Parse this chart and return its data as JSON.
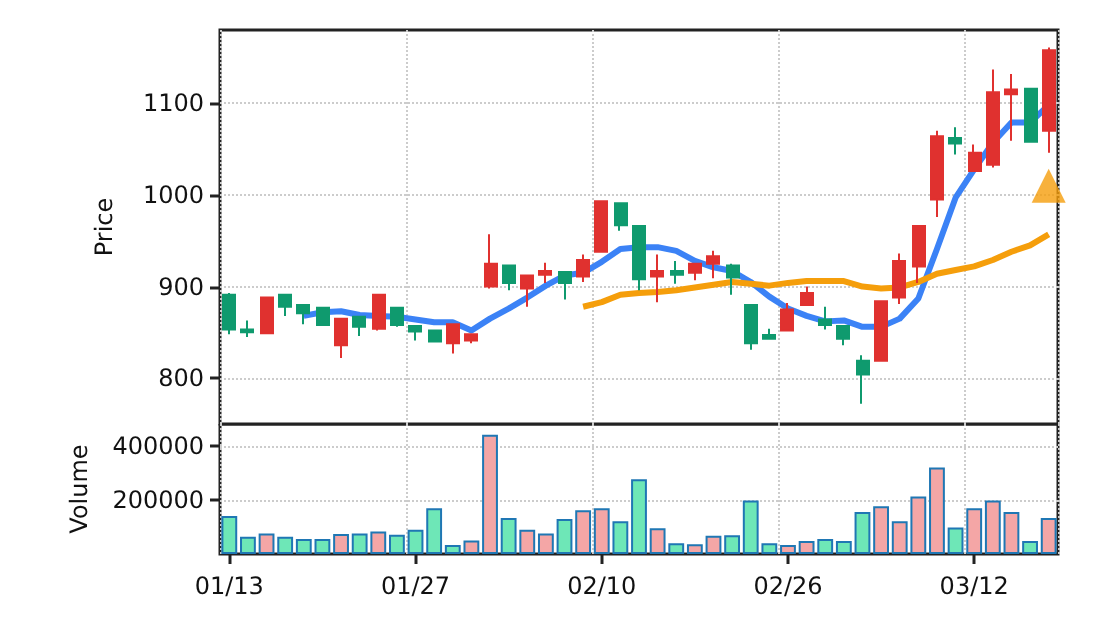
{
  "chart_data": [
    {
      "type": "candlestick",
      "ylabel": "Price",
      "tick_labels": "y",
      "grid": true,
      "categories": [
        null,
        null,
        null,
        null,
        null,
        null,
        null,
        null,
        null,
        null,
        null,
        null,
        null,
        null,
        null,
        null,
        null,
        null,
        null,
        null,
        null,
        null,
        null,
        null,
        null,
        null,
        null,
        null,
        null,
        null,
        null,
        null,
        null,
        null,
        null,
        null,
        null,
        null,
        null,
        null,
        null,
        null,
        null,
        null,
        null
      ],
      "ylim": [
        750,
        1180
      ],
      "yticks": [
        800,
        900,
        1000,
        1100
      ],
      "ohlc": [
        [
          891,
          893,
          848,
          853
        ],
        [
          853,
          863,
          845,
          850
        ],
        [
          849,
          889,
          848,
          888
        ],
        [
          891,
          891,
          868,
          878
        ],
        [
          880,
          881,
          859,
          871
        ],
        [
          877,
          878,
          857,
          858
        ],
        [
          836,
          866,
          822,
          865
        ],
        [
          867,
          868,
          846,
          856
        ],
        [
          854,
          892,
          852,
          891
        ],
        [
          877,
          878,
          856,
          858
        ],
        [
          857,
          858,
          841,
          851
        ],
        [
          852,
          853,
          839,
          840
        ],
        [
          838,
          860,
          827,
          859
        ],
        [
          841,
          849,
          838,
          848
        ],
        [
          900,
          957,
          898,
          925
        ],
        [
          923,
          924,
          896,
          904
        ],
        [
          898,
          913,
          878,
          912
        ],
        [
          913,
          926,
          904,
          917
        ],
        [
          916,
          917,
          886,
          904
        ],
        [
          911,
          935,
          905,
          929
        ],
        [
          938,
          994,
          937,
          993
        ],
        [
          991,
          992,
          961,
          967
        ],
        [
          966,
          967,
          896,
          908
        ],
        [
          911,
          935,
          883,
          917
        ],
        [
          917,
          928,
          903,
          913
        ],
        [
          915,
          926,
          907,
          925
        ],
        [
          925,
          939,
          909,
          933
        ],
        [
          923,
          925,
          891,
          910
        ],
        [
          880,
          881,
          831,
          838
        ],
        [
          847,
          854,
          842,
          843
        ],
        [
          852,
          882,
          851,
          875
        ],
        [
          880,
          900,
          879,
          893
        ],
        [
          864,
          878,
          853,
          858
        ],
        [
          857,
          858,
          836,
          843
        ],
        [
          819,
          825,
          772,
          804
        ],
        [
          819,
          885,
          818,
          884
        ],
        [
          888,
          936,
          881,
          928
        ],
        [
          922,
          967,
          904,
          966
        ],
        [
          995,
          1070,
          976,
          1064
        ],
        [
          1062,
          1074,
          1044,
          1056
        ],
        [
          1026,
          1055,
          1025,
          1046
        ],
        [
          1033,
          1137,
          1030,
          1112
        ],
        [
          1110,
          1132,
          1059,
          1115
        ],
        [
          1116,
          1117,
          1057,
          1058
        ],
        [
          1070,
          1161,
          1046,
          1158
        ]
      ],
      "colors": [
        "#0f9a6e",
        "#0f9a6e",
        "#e0312f",
        "#0f9a6e",
        "#0f9a6e",
        "#0f9a6e",
        "#e0312f",
        "#0f9a6e",
        "#e0312f",
        "#0f9a6e",
        "#0f9a6e",
        "#0f9a6e",
        "#e0312f",
        "#e0312f",
        "#e0312f",
        "#0f9a6e",
        "#e0312f",
        "#e0312f",
        "#0f9a6e",
        "#e0312f",
        "#e0312f",
        "#0f9a6e",
        "#0f9a6e",
        "#e0312f",
        "#0f9a6e",
        "#e0312f",
        "#e0312f",
        "#0f9a6e",
        "#0f9a6e",
        "#0f9a6e",
        "#e0312f",
        "#e0312f",
        "#0f9a6e",
        "#0f9a6e",
        "#0f9a6e",
        "#e0312f",
        "#e0312f",
        "#e0312f",
        "#e0312f",
        "#0f9a6e",
        "#e0312f",
        "#e0312f",
        "#e0312f",
        "#0f9a6e",
        "#e0312f"
      ],
      "series": [
        {
          "type": "line",
          "color": "#3b82f6",
          "values": [
            null,
            null,
            null,
            null,
            868,
            872,
            873,
            869,
            868,
            867,
            864,
            861,
            861,
            852,
            865,
            876,
            888,
            901,
            912,
            915,
            927,
            941,
            943,
            943,
            939,
            928,
            921,
            917,
            905,
            889,
            876,
            868,
            862,
            863,
            856,
            856,
            865,
            887,
            941,
            997,
            1028,
            1057,
            1079,
            1079,
            1098
          ]
        },
        {
          "type": "line",
          "color": "#f59e0b",
          "values": [
            null,
            null,
            null,
            null,
            null,
            null,
            null,
            null,
            null,
            null,
            null,
            null,
            null,
            null,
            null,
            null,
            null,
            null,
            null,
            878,
            883,
            891,
            893,
            894,
            896,
            899,
            902,
            905,
            903,
            901,
            904,
            906,
            906,
            906,
            900,
            898,
            899,
            905,
            914,
            918,
            922,
            929,
            938,
            945,
            957
          ]
        },
        {
          "type": "scatter",
          "marker": "triangle",
          "color": "#f59e0b",
          "values": [
            null,
            null,
            null,
            null,
            null,
            null,
            null,
            null,
            null,
            null,
            null,
            null,
            null,
            null,
            null,
            null,
            null,
            null,
            null,
            null,
            null,
            null,
            null,
            null,
            null,
            null,
            null,
            null,
            null,
            null,
            null,
            null,
            null,
            null,
            null,
            null,
            null,
            null,
            null,
            null,
            null,
            null,
            null,
            null,
            1010
          ]
        }
      ]
    },
    {
      "type": "bar",
      "ylabel": "Volume",
      "grid": true,
      "categories": [
        "01/13",
        null,
        null,
        null,
        null,
        null,
        null,
        null,
        null,
        null,
        "01/27",
        null,
        null,
        null,
        null,
        null,
        null,
        null,
        null,
        null,
        "02/10",
        null,
        null,
        null,
        null,
        null,
        null,
        null,
        null,
        null,
        "02/26",
        null,
        null,
        null,
        null,
        null,
        null,
        null,
        null,
        null,
        "03/12",
        null,
        null,
        null,
        null
      ],
      "ylim": [
        0,
        480000
      ],
      "yticks": [
        200000,
        400000
      ],
      "values": [
        140000,
        64000,
        76000,
        64000,
        55000,
        55000,
        74000,
        76000,
        83000,
        71000,
        90000,
        169000,
        33000,
        50000,
        440000,
        133000,
        90000,
        76000,
        129000,
        162000,
        169000,
        121000,
        276000,
        95000,
        40000,
        36000,
        67000,
        69000,
        198000,
        40000,
        33000,
        48000,
        55000,
        48000,
        155000,
        176000,
        121000,
        212000,
        319000,
        98000,
        169000,
        198000,
        155000,
        48000,
        133000
      ],
      "colors": [
        "#6ee7b7",
        "#6ee7b7",
        "#f4a6a6",
        "#6ee7b7",
        "#6ee7b7",
        "#6ee7b7",
        "#f4a6a6",
        "#6ee7b7",
        "#f4a6a6",
        "#6ee7b7",
        "#6ee7b7",
        "#6ee7b7",
        "#6ee7b7",
        "#f4a6a6",
        "#f4a6a6",
        "#6ee7b7",
        "#f4a6a6",
        "#f4a6a6",
        "#6ee7b7",
        "#f4a6a6",
        "#f4a6a6",
        "#6ee7b7",
        "#6ee7b7",
        "#f4a6a6",
        "#6ee7b7",
        "#f4a6a6",
        "#f4a6a6",
        "#6ee7b7",
        "#6ee7b7",
        "#6ee7b7",
        "#f4a6a6",
        "#f4a6a6",
        "#6ee7b7",
        "#6ee7b7",
        "#6ee7b7",
        "#f4a6a6",
        "#f4a6a6",
        "#f4a6a6",
        "#f4a6a6",
        "#6ee7b7",
        "#f4a6a6",
        "#f4a6a6",
        "#f4a6a6",
        "#6ee7b7",
        "#f4a6a6"
      ]
    }
  ]
}
